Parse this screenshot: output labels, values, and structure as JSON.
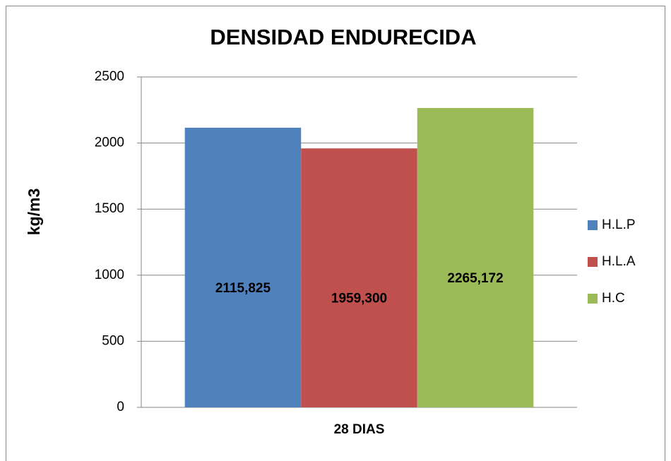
{
  "chart_data": {
    "type": "bar",
    "title": "DENSIDAD ENDURECIDA",
    "ylabel": "kg/m3",
    "categories": [
      "28 DIAS"
    ],
    "series": [
      {
        "name": "H.L.P",
        "color": "#4f81bd",
        "values": [
          2115.825
        ],
        "value_labels": [
          "2115,825"
        ]
      },
      {
        "name": "H.L.A",
        "color": "#c0504d",
        "values": [
          1959.3
        ],
        "value_labels": [
          "1959,300"
        ]
      },
      {
        "name": "H.C",
        "color": "#9bbb59",
        "values": [
          2265.172
        ],
        "value_labels": [
          "2265,172"
        ]
      }
    ],
    "ylim": [
      0,
      2500
    ],
    "yticks": [
      0,
      500,
      1000,
      1500,
      2000,
      2500
    ],
    "grid": true,
    "legend": "right"
  }
}
